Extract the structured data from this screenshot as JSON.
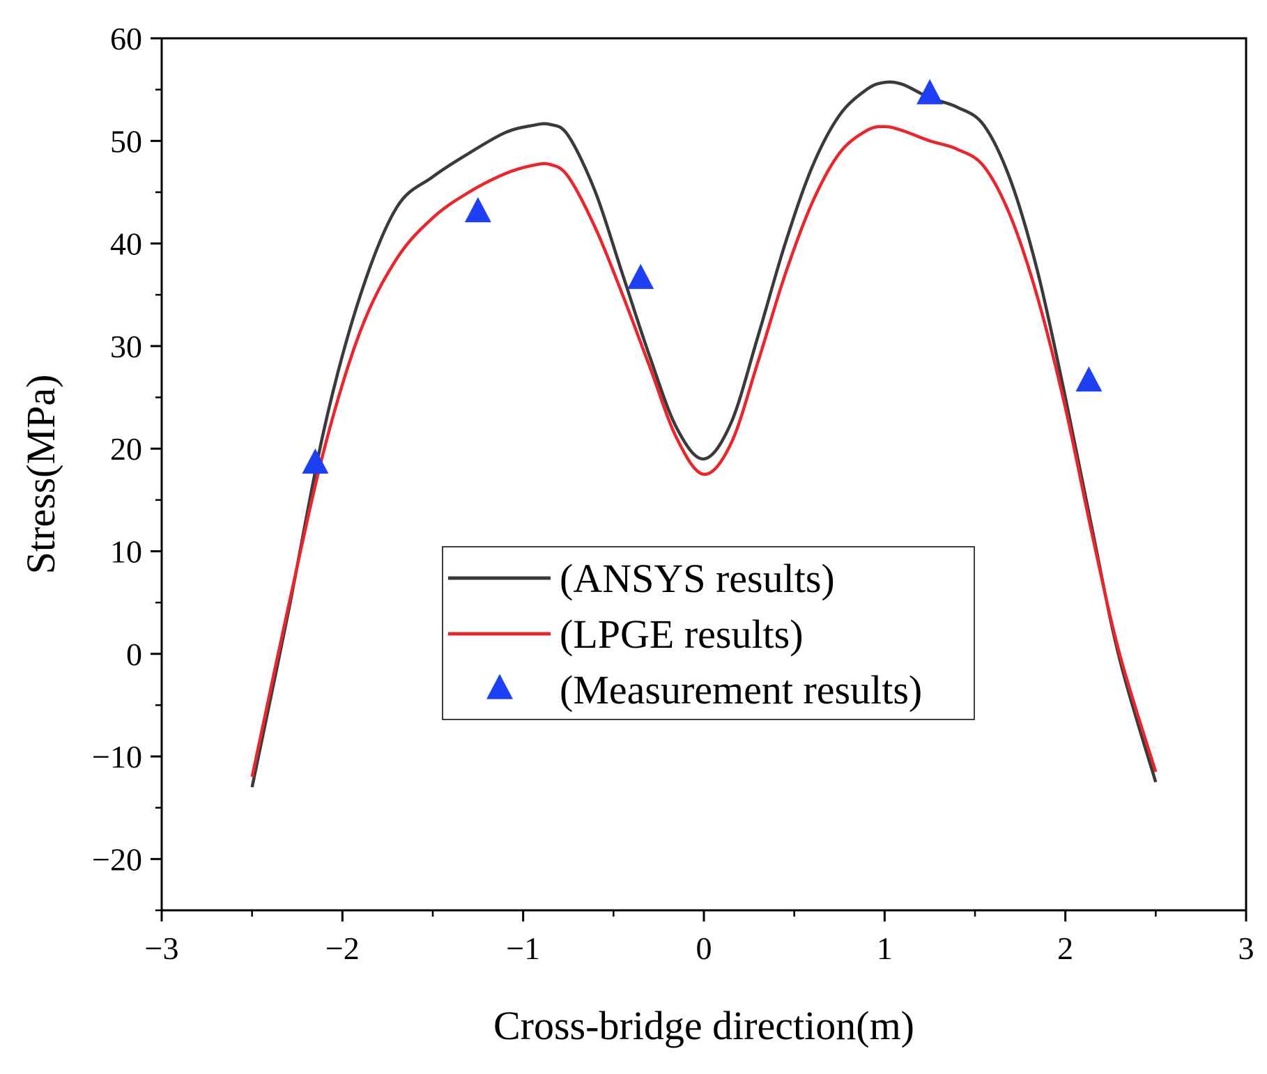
{
  "chart_data": {
    "type": "line",
    "title": "",
    "xlabel": "Cross-bridge direction(m)",
    "ylabel": "Stress(MPa)",
    "xlim": [
      -3,
      3
    ],
    "ylim": [
      -25,
      60
    ],
    "xticks": [
      -3,
      -2,
      -1,
      0,
      1,
      2,
      3
    ],
    "xtick_labels": [
      "−3",
      "−2",
      "−1",
      "0",
      "1",
      "2",
      "3"
    ],
    "yticks": [
      -20,
      -10,
      0,
      10,
      20,
      30,
      40,
      50,
      60
    ],
    "ytick_labels": [
      "−20",
      "−10",
      "0",
      "10",
      "20",
      "30",
      "40",
      "50",
      "60"
    ],
    "grid": false,
    "legend_position": "center",
    "series": [
      {
        "name": "(ANSYS results)",
        "kind": "line",
        "color": "#3a3a3a",
        "x": [
          -2.5,
          -2.3,
          -2.1,
          -1.9,
          -1.7,
          -1.5,
          -1.3,
          -1.1,
          -0.95,
          -0.85,
          -0.75,
          -0.6,
          -0.45,
          -0.3,
          -0.15,
          0.0,
          0.15,
          0.3,
          0.45,
          0.6,
          0.75,
          0.9,
          1.0,
          1.1,
          1.25,
          1.4,
          1.55,
          1.7,
          1.85,
          2.0,
          2.15,
          2.3,
          2.5
        ],
        "y": [
          -13.0,
          4.0,
          22.0,
          35.0,
          43.5,
          46.5,
          48.8,
          50.8,
          51.5,
          51.6,
          50.5,
          45.0,
          37.0,
          29.0,
          22.0,
          19.0,
          22.5,
          31.0,
          40.0,
          47.5,
          52.5,
          55.0,
          55.7,
          55.5,
          54.2,
          53.3,
          51.5,
          46.0,
          37.0,
          25.0,
          12.0,
          -0.5,
          -12.5
        ]
      },
      {
        "name": "(LPGE results)",
        "kind": "line",
        "color": "#e8262b",
        "x": [
          -2.5,
          -2.3,
          -2.1,
          -1.9,
          -1.7,
          -1.5,
          -1.3,
          -1.1,
          -0.95,
          -0.85,
          -0.75,
          -0.6,
          -0.45,
          -0.3,
          -0.15,
          0.0,
          0.15,
          0.3,
          0.45,
          0.6,
          0.75,
          0.9,
          1.0,
          1.1,
          1.25,
          1.4,
          1.55,
          1.7,
          1.85,
          2.0,
          2.15,
          2.3,
          2.5
        ],
        "y": [
          -12.0,
          4.5,
          20.0,
          31.5,
          38.5,
          42.5,
          45.0,
          46.8,
          47.6,
          47.7,
          46.5,
          41.5,
          35.0,
          28.0,
          21.0,
          17.5,
          20.5,
          28.5,
          37.0,
          44.0,
          48.8,
          51.0,
          51.4,
          51.0,
          50.0,
          49.2,
          47.5,
          42.5,
          34.5,
          24.0,
          11.5,
          0.0,
          -11.5
        ]
      },
      {
        "name": "(Measurement results)",
        "kind": "scatter",
        "marker": "triangle-up",
        "color": "#1f3ff5",
        "x": [
          -2.15,
          -1.25,
          -0.35,
          1.25,
          2.13
        ],
        "y": [
          18.5,
          43.0,
          36.5,
          54.5,
          26.5
        ]
      }
    ]
  }
}
